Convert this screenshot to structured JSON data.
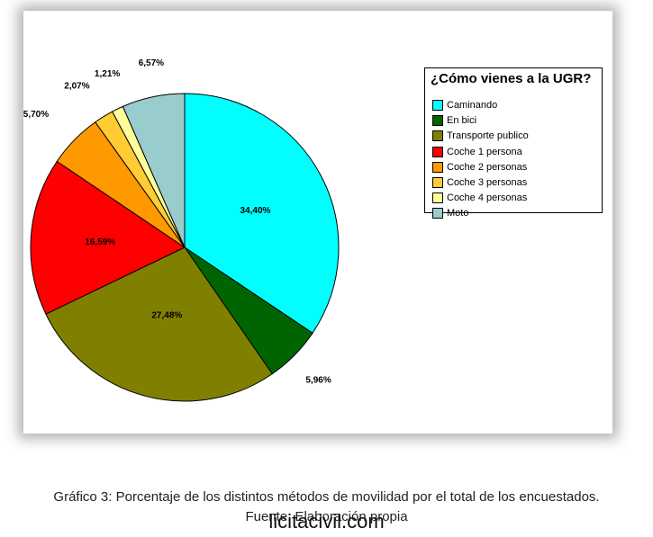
{
  "chart_data": {
    "type": "pie",
    "legend_title": "¿Cómo vienes a la UGR?",
    "legend_position": "right",
    "slices": [
      {
        "name": "Caminando",
        "value": 34.4,
        "label": "34,40%",
        "color": "#00ffff"
      },
      {
        "name": "En bici",
        "value": 5.96,
        "label": "5,96%",
        "color": "#006400"
      },
      {
        "name": "Transporte publico",
        "value": 27.48,
        "label": "27,48%",
        "color": "#808000"
      },
      {
        "name": "Coche 1 persona",
        "value": 16.59,
        "label": "16,59%",
        "color": "#ff0000"
      },
      {
        "name": "Coche 2 personas",
        "value": 5.7,
        "label": "5,70%",
        "color": "#ff9900"
      },
      {
        "name": "Coche 3 personas",
        "value": 2.07,
        "label": "2,07%",
        "color": "#ffcc33"
      },
      {
        "name": "Coche 4 personas",
        "value": 1.21,
        "label": "1,21%",
        "color": "#ffff99"
      },
      {
        "name": "Moto",
        "value": 6.57,
        "label": "6,57%",
        "color": "#99cccc"
      }
    ]
  },
  "caption": {
    "line1": "Gráfico 3: Porcentaje de los distintos métodos de movilidad por el total de los encuestados.",
    "line2": "Fuente: Elaboración propia"
  },
  "watermark": "licitacivil.com"
}
